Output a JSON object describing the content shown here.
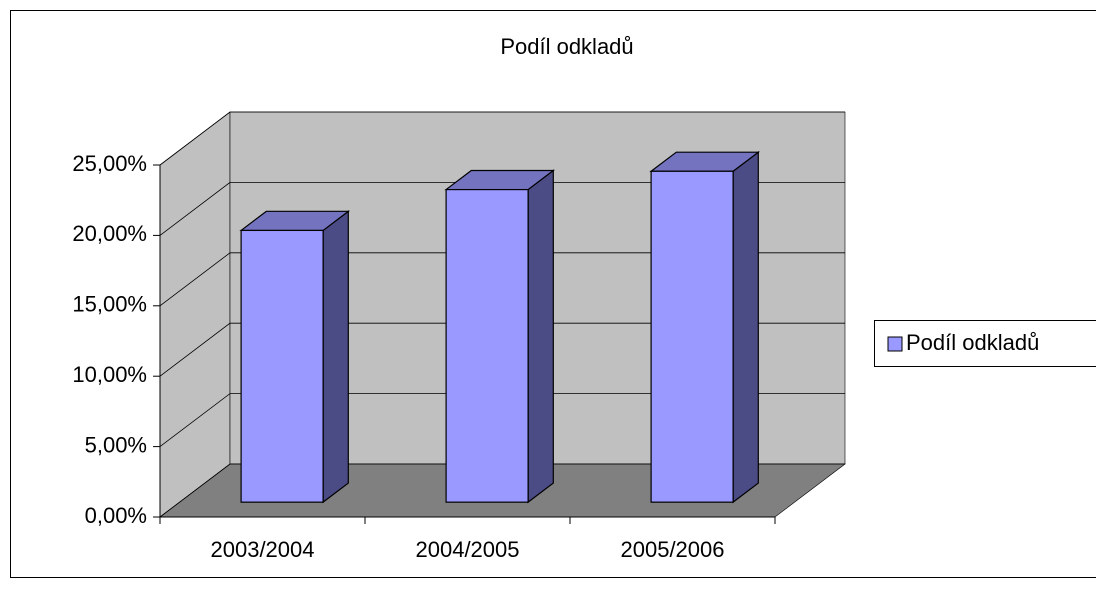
{
  "chart_data": {
    "type": "bar3d",
    "title": "Podíl odkladů",
    "categories": [
      "2003/2004",
      "2004/2005",
      "2005/2006"
    ],
    "series": [
      {
        "name": "Podíl odkladů",
        "color": "#9999ff",
        "values": [
          19.3,
          22.2,
          23.5
        ]
      }
    ],
    "ylim": [
      0,
      25
    ],
    "yticks": [
      {
        "value": 0,
        "label": "0,00%"
      },
      {
        "value": 5,
        "label": "5,00%"
      },
      {
        "value": 10,
        "label": "10,00%"
      },
      {
        "value": 15,
        "label": "15,00%"
      },
      {
        "value": 20,
        "label": "20,00%"
      },
      {
        "value": 25,
        "label": "25,00%"
      }
    ],
    "grid": true,
    "legend": "right"
  }
}
